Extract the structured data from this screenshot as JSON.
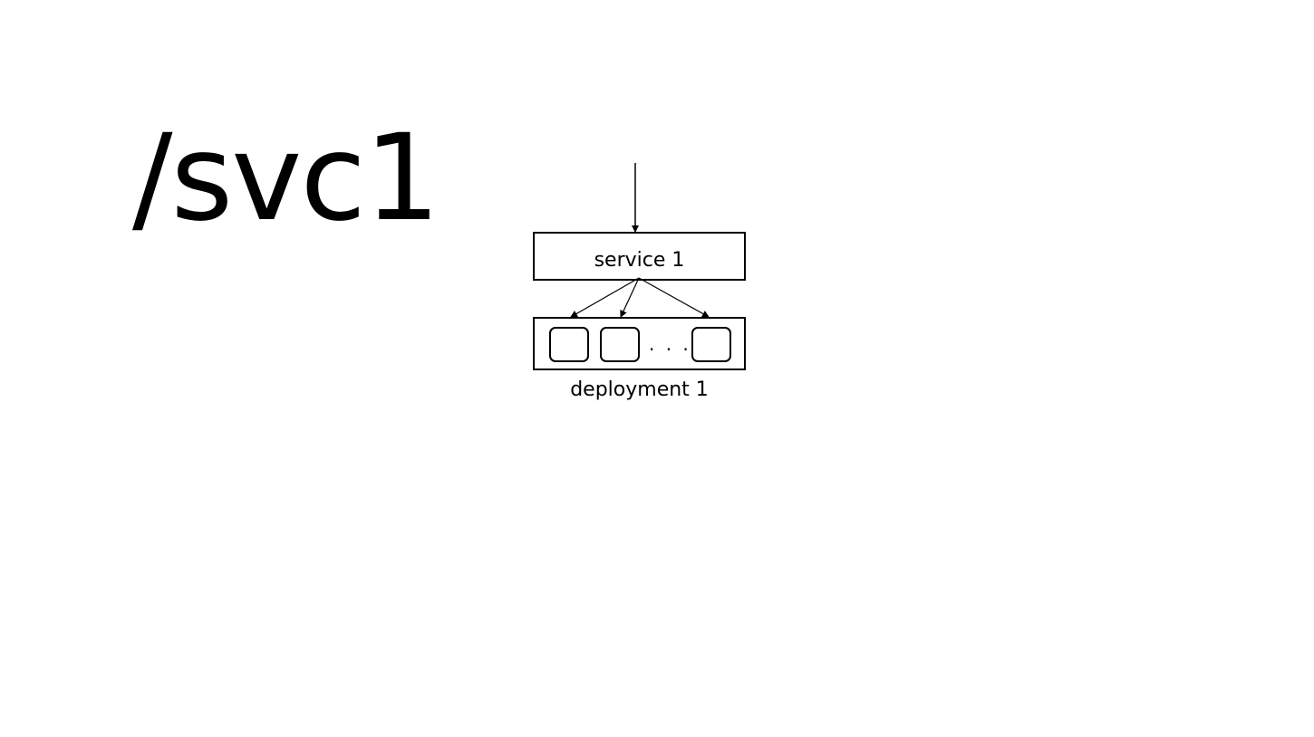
{
  "slide": {
    "path_title": "/svc1"
  },
  "diagram": {
    "service_label": "service 1",
    "deployment_label": "deployment 1",
    "pod_ellipsis": ". . ."
  }
}
